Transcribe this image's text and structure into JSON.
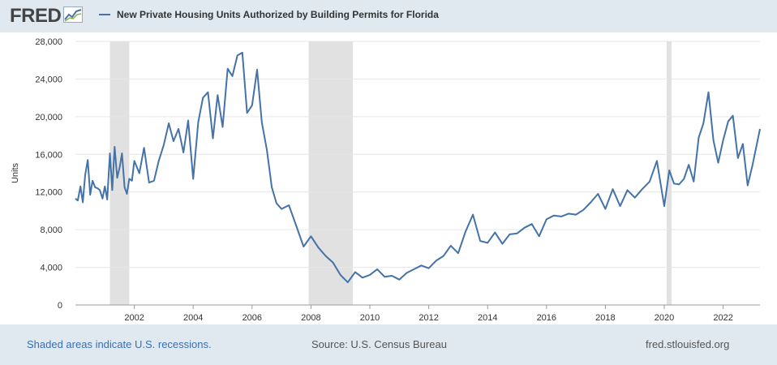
{
  "header": {
    "logo_text": "FRED",
    "logo_icon": "trend-chart-icon"
  },
  "legend": {
    "label": "New Private Housing Units Authorized by Building Permits for Florida",
    "color": "#4572a7"
  },
  "footer": {
    "recession_note": "Shaded areas indicate U.S. recessions.",
    "source": "Source: U.S. Census Bureau",
    "site": "fred.stlouisfed.org"
  },
  "colors": {
    "line": "#4572a7",
    "recession": "#e1e1e1",
    "grid": "#e6e6e6",
    "background": "#e1e9f0",
    "plot_background": "#ffffff",
    "note_link": "#3a6fb4"
  },
  "chart_data": {
    "type": "line",
    "title": "New Private Housing Units Authorized by Building Permits for Florida",
    "xlabel": "",
    "ylabel": "Units",
    "xlim": [
      2000.0,
      2023.25
    ],
    "ylim": [
      0,
      28000
    ],
    "yticks": [
      0,
      4000,
      8000,
      12000,
      16000,
      20000,
      24000,
      28000
    ],
    "ytick_labels": [
      "0",
      "4,000",
      "8,000",
      "12,000",
      "16,000",
      "20,000",
      "24,000",
      "28,000"
    ],
    "xticks": [
      2002,
      2004,
      2006,
      2008,
      2010,
      2012,
      2014,
      2016,
      2018,
      2020,
      2022
    ],
    "xtick_labels": [
      "2002",
      "2004",
      "2006",
      "2008",
      "2010",
      "2012",
      "2014",
      "2016",
      "2018",
      "2020",
      "2022"
    ],
    "grid": true,
    "legend": "top-left",
    "recessions": [
      [
        2001.17,
        2001.83
      ],
      [
        2007.92,
        2009.42
      ],
      [
        2020.08,
        2020.25
      ]
    ],
    "series": [
      {
        "name": "New Private Housing Units Authorized by Building Permits for Florida",
        "x": [
          2000.0,
          2000.08,
          2000.17,
          2000.25,
          2000.33,
          2000.42,
          2000.5,
          2000.58,
          2000.67,
          2000.75,
          2000.83,
          2000.92,
          2001.0,
          2001.08,
          2001.17,
          2001.25,
          2001.33,
          2001.42,
          2001.5,
          2001.58,
          2001.67,
          2001.75,
          2001.83,
          2001.92,
          2002.0,
          2002.17,
          2002.33,
          2002.5,
          2002.67,
          2002.83,
          2003.0,
          2003.17,
          2003.33,
          2003.5,
          2003.67,
          2003.83,
          2004.0,
          2004.17,
          2004.33,
          2004.5,
          2004.67,
          2004.83,
          2005.0,
          2005.17,
          2005.33,
          2005.5,
          2005.67,
          2005.83,
          2006.0,
          2006.17,
          2006.33,
          2006.5,
          2006.67,
          2006.83,
          2007.0,
          2007.25,
          2007.5,
          2007.75,
          2008.0,
          2008.25,
          2008.5,
          2008.75,
          2009.0,
          2009.25,
          2009.5,
          2009.75,
          2010.0,
          2010.25,
          2010.5,
          2010.75,
          2011.0,
          2011.25,
          2011.5,
          2011.75,
          2012.0,
          2012.25,
          2012.5,
          2012.75,
          2013.0,
          2013.25,
          2013.5,
          2013.75,
          2014.0,
          2014.25,
          2014.5,
          2014.75,
          2015.0,
          2015.25,
          2015.5,
          2015.75,
          2016.0,
          2016.25,
          2016.5,
          2016.75,
          2017.0,
          2017.25,
          2017.5,
          2017.75,
          2018.0,
          2018.25,
          2018.5,
          2018.75,
          2019.0,
          2019.25,
          2019.5,
          2019.75,
          2020.0,
          2020.17,
          2020.33,
          2020.5,
          2020.67,
          2020.83,
          2021.0,
          2021.17,
          2021.33,
          2021.5,
          2021.67,
          2021.83,
          2022.0,
          2022.17,
          2022.33,
          2022.5,
          2022.67,
          2022.83,
          2023.0,
          2023.25
        ],
        "values": [
          11300,
          11100,
          12600,
          10900,
          13800,
          15400,
          11700,
          13200,
          12500,
          12400,
          12200,
          11300,
          12600,
          11200,
          16100,
          12200,
          16800,
          13500,
          14600,
          16100,
          12500,
          11800,
          13400,
          13200,
          15300,
          14000,
          16700,
          13000,
          13200,
          15300,
          17000,
          19300,
          17400,
          18700,
          16200,
          19600,
          13400,
          19400,
          22000,
          22600,
          17700,
          22300,
          18900,
          25100,
          24300,
          26500,
          26800,
          20400,
          21200,
          25000,
          19400,
          16500,
          12500,
          10800,
          10200,
          10600,
          8400,
          6200,
          7300,
          6100,
          5200,
          4500,
          3200,
          2400,
          3500,
          2900,
          3200,
          3800,
          3000,
          3100,
          2700,
          3400,
          3800,
          4200,
          3900,
          4700,
          5200,
          6300,
          5500,
          7800,
          9600,
          6800,
          6600,
          7700,
          6500,
          7500,
          7600,
          8200,
          8600,
          7300,
          9100,
          9500,
          9400,
          9700,
          9600,
          10100,
          10900,
          11800,
          10200,
          12300,
          10500,
          12200,
          11400,
          12300,
          13100,
          15300,
          10500,
          14300,
          12900,
          12800,
          13400,
          14900,
          13100,
          17800,
          19300,
          22600,
          17500,
          15100,
          17500,
          19500,
          20100,
          15600,
          17100,
          12700,
          14900,
          18700
        ]
      }
    ]
  }
}
